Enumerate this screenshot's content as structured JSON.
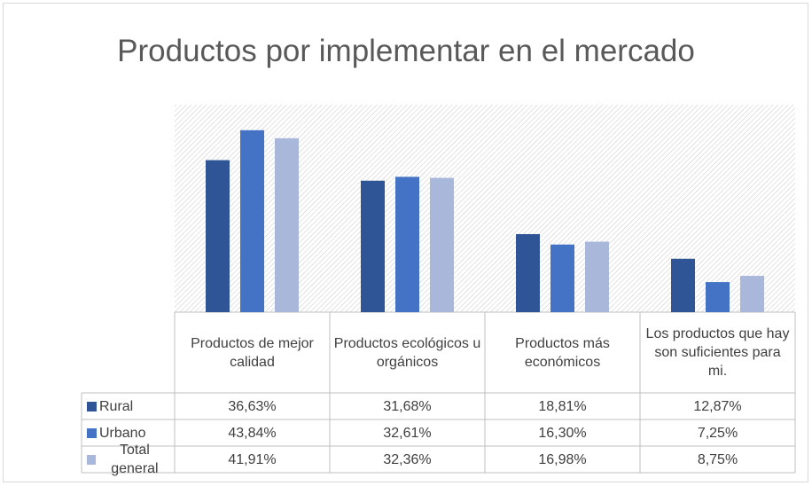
{
  "chart_data": {
    "type": "bar",
    "title": "Productos por implementar en el mercado",
    "categories": [
      "Productos de mejor calidad",
      "Productos ecológicos u orgánicos",
      "Productos más económicos",
      "Los productos que hay son suficientes para mi."
    ],
    "series": [
      {
        "name": "Rural",
        "color": "#2f5597",
        "values": [
          36.63,
          31.68,
          18.81,
          12.87
        ],
        "value_labels": [
          "36,63%",
          "31,68%",
          "18,81%",
          "12,87%"
        ]
      },
      {
        "name": "Urbano",
        "color": "#4472c4",
        "values": [
          43.84,
          32.61,
          16.3,
          7.25
        ],
        "value_labels": [
          "43,84%",
          "32,61%",
          "16,30%",
          "7,25%"
        ]
      },
      {
        "name": "Total general",
        "color": "#a9b7da",
        "values": [
          41.91,
          32.36,
          16.98,
          8.75
        ],
        "value_labels": [
          "41,91%",
          "32,36%",
          "16,98%",
          "8,75%"
        ]
      }
    ],
    "ylim": [
      0,
      50
    ]
  }
}
